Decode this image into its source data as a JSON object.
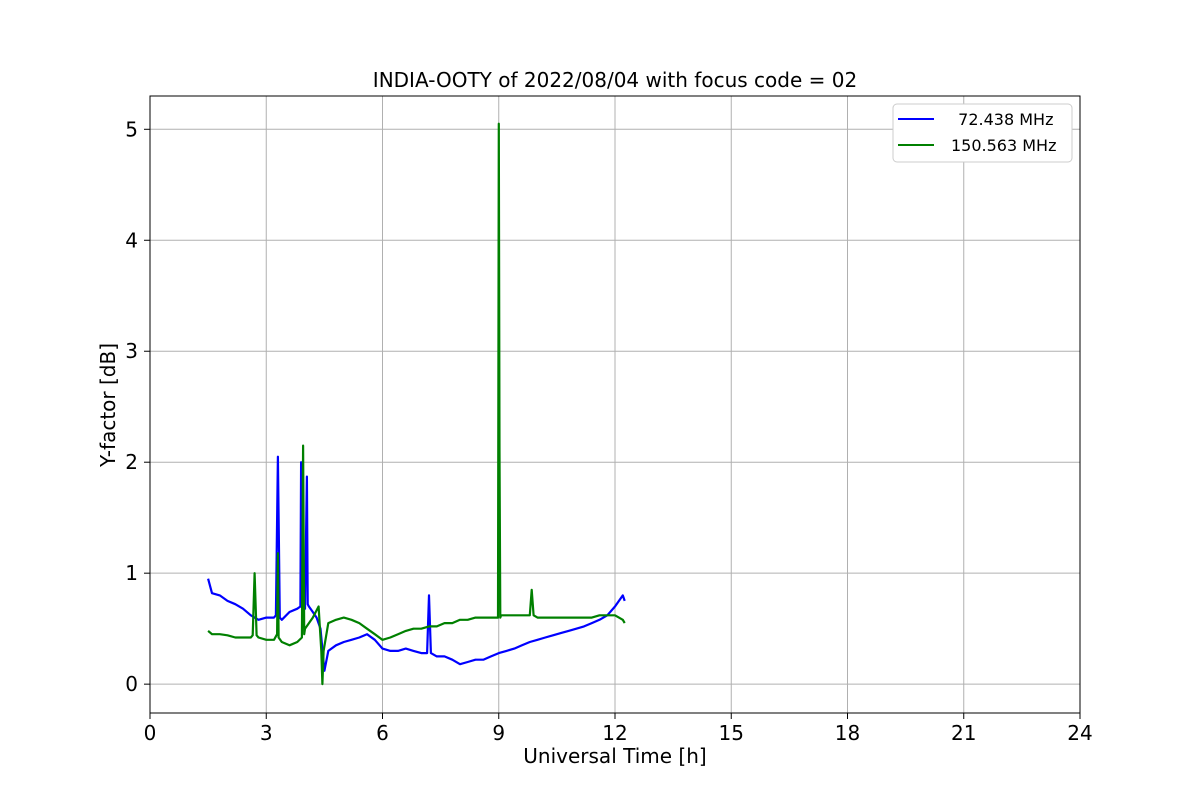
{
  "chart_data": {
    "type": "line",
    "title": "INDIA-OOTY of 2022/08/04 with focus code = 02",
    "xlabel": "Universal Time [h]",
    "ylabel": "Y-factor [dB]",
    "xlim": [
      0,
      24
    ],
    "ylim": [
      -0.26,
      5.3
    ],
    "xticks": [
      0,
      3,
      6,
      9,
      12,
      15,
      18,
      21,
      24
    ],
    "xtick_labels": [
      "0",
      "3",
      "6",
      "9",
      "12",
      "15",
      "18",
      "21",
      "24"
    ],
    "yticks": [
      0,
      1,
      2,
      3,
      4,
      5
    ],
    "ytick_labels": [
      "0",
      "1",
      "2",
      "3",
      "4",
      "5"
    ],
    "grid": true,
    "legend_position": "top-right",
    "series": [
      {
        "name": "  72.438 MHz",
        "color": "#0000ff",
        "x": [
          1.5,
          1.6,
          1.8,
          2.0,
          2.2,
          2.4,
          2.6,
          2.8,
          3.0,
          3.2,
          3.25,
          3.3,
          3.35,
          3.4,
          3.6,
          3.8,
          3.88,
          3.9,
          3.92,
          4.0,
          4.05,
          4.07,
          4.1,
          4.2,
          4.3,
          4.4,
          4.5,
          4.6,
          4.8,
          5.0,
          5.2,
          5.4,
          5.6,
          5.8,
          6.0,
          6.2,
          6.4,
          6.6,
          6.8,
          7.0,
          7.15,
          7.2,
          7.25,
          7.4,
          7.6,
          7.8,
          8.0,
          8.2,
          8.4,
          8.6,
          8.8,
          9.0,
          9.2,
          9.4,
          9.6,
          9.8,
          10.0,
          10.2,
          10.4,
          10.6,
          10.8,
          11.0,
          11.2,
          11.4,
          11.6,
          11.8,
          12.0,
          12.2,
          12.25
        ],
        "y": [
          0.95,
          0.82,
          0.8,
          0.75,
          0.72,
          0.68,
          0.62,
          0.58,
          0.6,
          0.6,
          0.62,
          2.05,
          0.6,
          0.58,
          0.65,
          0.68,
          0.7,
          2.0,
          0.7,
          0.68,
          1.87,
          0.72,
          0.7,
          0.65,
          0.6,
          0.5,
          0.12,
          0.3,
          0.35,
          0.38,
          0.4,
          0.42,
          0.45,
          0.4,
          0.32,
          0.3,
          0.3,
          0.32,
          0.3,
          0.28,
          0.28,
          0.8,
          0.28,
          0.25,
          0.25,
          0.22,
          0.18,
          0.2,
          0.22,
          0.22,
          0.25,
          0.28,
          0.3,
          0.32,
          0.35,
          0.38,
          0.4,
          0.42,
          0.44,
          0.46,
          0.48,
          0.5,
          0.52,
          0.55,
          0.58,
          0.62,
          0.7,
          0.8,
          0.75
        ]
      },
      {
        "name": "150.563 MHz",
        "color": "#008000",
        "x": [
          1.5,
          1.6,
          1.8,
          2.0,
          2.2,
          2.4,
          2.6,
          2.65,
          2.7,
          2.75,
          2.8,
          3.0,
          3.2,
          3.28,
          3.3,
          3.32,
          3.4,
          3.6,
          3.8,
          3.92,
          3.95,
          3.98,
          4.0,
          4.2,
          4.35,
          4.42,
          4.45,
          4.48,
          4.6,
          4.8,
          5.0,
          5.2,
          5.4,
          5.6,
          5.8,
          6.0,
          6.2,
          6.4,
          6.6,
          6.8,
          7.0,
          7.2,
          7.4,
          7.6,
          7.8,
          8.0,
          8.2,
          8.4,
          8.6,
          8.8,
          8.98,
          9.0,
          9.02,
          9.04,
          9.06,
          9.2,
          9.4,
          9.6,
          9.8,
          9.85,
          9.9,
          10.0,
          10.2,
          10.4,
          10.6,
          10.8,
          11.0,
          11.2,
          11.4,
          11.6,
          11.8,
          12.0,
          12.2,
          12.25
        ],
        "y": [
          0.48,
          0.45,
          0.45,
          0.44,
          0.42,
          0.42,
          0.42,
          0.44,
          1.0,
          0.44,
          0.42,
          0.4,
          0.4,
          0.45,
          1.18,
          0.42,
          0.38,
          0.35,
          0.38,
          0.42,
          2.15,
          0.45,
          0.5,
          0.6,
          0.7,
          0.3,
          0.0,
          0.3,
          0.55,
          0.58,
          0.6,
          0.58,
          0.55,
          0.5,
          0.45,
          0.4,
          0.42,
          0.45,
          0.48,
          0.5,
          0.5,
          0.52,
          0.52,
          0.55,
          0.55,
          0.58,
          0.58,
          0.6,
          0.6,
          0.6,
          0.6,
          5.05,
          2.1,
          0.6,
          0.62,
          0.62,
          0.62,
          0.62,
          0.62,
          0.85,
          0.62,
          0.6,
          0.6,
          0.6,
          0.6,
          0.6,
          0.6,
          0.6,
          0.6,
          0.62,
          0.62,
          0.62,
          0.58,
          0.55
        ]
      }
    ]
  }
}
